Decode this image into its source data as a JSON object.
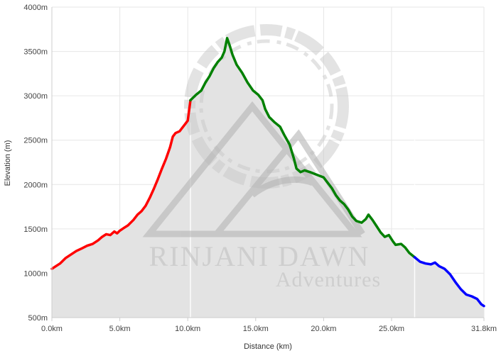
{
  "chart_data": {
    "type": "area",
    "title": "",
    "xlabel": "Distance (km)",
    "ylabel": "Elevation (m)",
    "xlim": [
      0,
      31.8
    ],
    "ylim": [
      500,
      4000
    ],
    "grid": true,
    "x_ticks": [
      {
        "value": 0,
        "label": "0.0km"
      },
      {
        "value": 5,
        "label": "5.0km"
      },
      {
        "value": 10,
        "label": "10.0km"
      },
      {
        "value": 15,
        "label": "15.0km"
      },
      {
        "value": 20,
        "label": "20.0km"
      },
      {
        "value": 25,
        "label": "25.0km"
      },
      {
        "value": 31.8,
        "label": "31.8km"
      }
    ],
    "y_ticks": [
      {
        "value": 500,
        "label": "500m"
      },
      {
        "value": 1000,
        "label": "1000m"
      },
      {
        "value": 1500,
        "label": "1500m"
      },
      {
        "value": 2000,
        "label": "2000m"
      },
      {
        "value": 2500,
        "label": "2500m"
      },
      {
        "value": 3000,
        "label": "3000m"
      },
      {
        "value": 3500,
        "label": "3500m"
      },
      {
        "value": 4000,
        "label": "4000m"
      }
    ],
    "stage_markers_km": [
      10.2,
      26.7
    ],
    "area_color": "#e3e3e3",
    "series": [
      {
        "color": "#ff0000",
        "points": [
          [
            0,
            1050
          ],
          [
            0.3,
            1080
          ],
          [
            0.6,
            1110
          ],
          [
            1.0,
            1170
          ],
          [
            1.4,
            1210
          ],
          [
            1.8,
            1250
          ],
          [
            2.2,
            1280
          ],
          [
            2.6,
            1310
          ],
          [
            3.0,
            1330
          ],
          [
            3.4,
            1370
          ],
          [
            3.7,
            1410
          ],
          [
            4.0,
            1440
          ],
          [
            4.3,
            1430
          ],
          [
            4.6,
            1470
          ],
          [
            4.8,
            1450
          ],
          [
            5.0,
            1480
          ],
          [
            5.3,
            1510
          ],
          [
            5.6,
            1540
          ],
          [
            6.0,
            1600
          ],
          [
            6.3,
            1660
          ],
          [
            6.6,
            1700
          ],
          [
            6.9,
            1760
          ],
          [
            7.2,
            1850
          ],
          [
            7.5,
            1950
          ],
          [
            7.8,
            2060
          ],
          [
            8.1,
            2180
          ],
          [
            8.4,
            2290
          ],
          [
            8.7,
            2420
          ],
          [
            8.9,
            2540
          ],
          [
            9.1,
            2580
          ],
          [
            9.4,
            2600
          ],
          [
            9.7,
            2660
          ],
          [
            10.0,
            2720
          ],
          [
            10.2,
            2950
          ]
        ]
      },
      {
        "color": "#008000",
        "points": [
          [
            10.2,
            2950
          ],
          [
            10.6,
            3010
          ],
          [
            11.0,
            3060
          ],
          [
            11.3,
            3150
          ],
          [
            11.6,
            3220
          ],
          [
            11.9,
            3310
          ],
          [
            12.2,
            3380
          ],
          [
            12.5,
            3430
          ],
          [
            12.7,
            3500
          ],
          [
            12.9,
            3650
          ],
          [
            13.1,
            3560
          ],
          [
            13.3,
            3460
          ],
          [
            13.6,
            3350
          ],
          [
            14.0,
            3260
          ],
          [
            14.4,
            3150
          ],
          [
            14.8,
            3060
          ],
          [
            15.2,
            3010
          ],
          [
            15.5,
            2950
          ],
          [
            15.7,
            2850
          ],
          [
            16.0,
            2760
          ],
          [
            16.4,
            2700
          ],
          [
            16.8,
            2650
          ],
          [
            17.1,
            2560
          ],
          [
            17.5,
            2450
          ],
          [
            17.8,
            2300
          ],
          [
            18.0,
            2180
          ],
          [
            18.3,
            2140
          ],
          [
            18.6,
            2160
          ],
          [
            19.0,
            2140
          ],
          [
            19.5,
            2110
          ],
          [
            20.0,
            2080
          ],
          [
            20.3,
            2020
          ],
          [
            20.6,
            1960
          ],
          [
            20.9,
            1880
          ],
          [
            21.2,
            1820
          ],
          [
            21.5,
            1780
          ],
          [
            21.8,
            1720
          ],
          [
            22.1,
            1640
          ],
          [
            22.4,
            1590
          ],
          [
            22.8,
            1570
          ],
          [
            23.1,
            1610
          ],
          [
            23.3,
            1660
          ],
          [
            23.6,
            1600
          ],
          [
            23.9,
            1530
          ],
          [
            24.2,
            1460
          ],
          [
            24.5,
            1410
          ],
          [
            24.8,
            1430
          ],
          [
            25.1,
            1360
          ],
          [
            25.3,
            1320
          ],
          [
            25.7,
            1330
          ],
          [
            26.0,
            1290
          ],
          [
            26.3,
            1230
          ],
          [
            26.7,
            1180
          ]
        ]
      },
      {
        "color": "#0000ff",
        "points": [
          [
            26.7,
            1180
          ],
          [
            27.1,
            1130
          ],
          [
            27.5,
            1110
          ],
          [
            27.9,
            1100
          ],
          [
            28.2,
            1120
          ],
          [
            28.5,
            1080
          ],
          [
            28.9,
            1050
          ],
          [
            29.3,
            990
          ],
          [
            29.7,
            900
          ],
          [
            30.1,
            820
          ],
          [
            30.5,
            760
          ],
          [
            30.9,
            740
          ],
          [
            31.3,
            710
          ],
          [
            31.6,
            650
          ],
          [
            31.8,
            630
          ]
        ]
      }
    ]
  },
  "watermark": {
    "line1": "RINJANI DAWN",
    "line2": "Adventures"
  }
}
